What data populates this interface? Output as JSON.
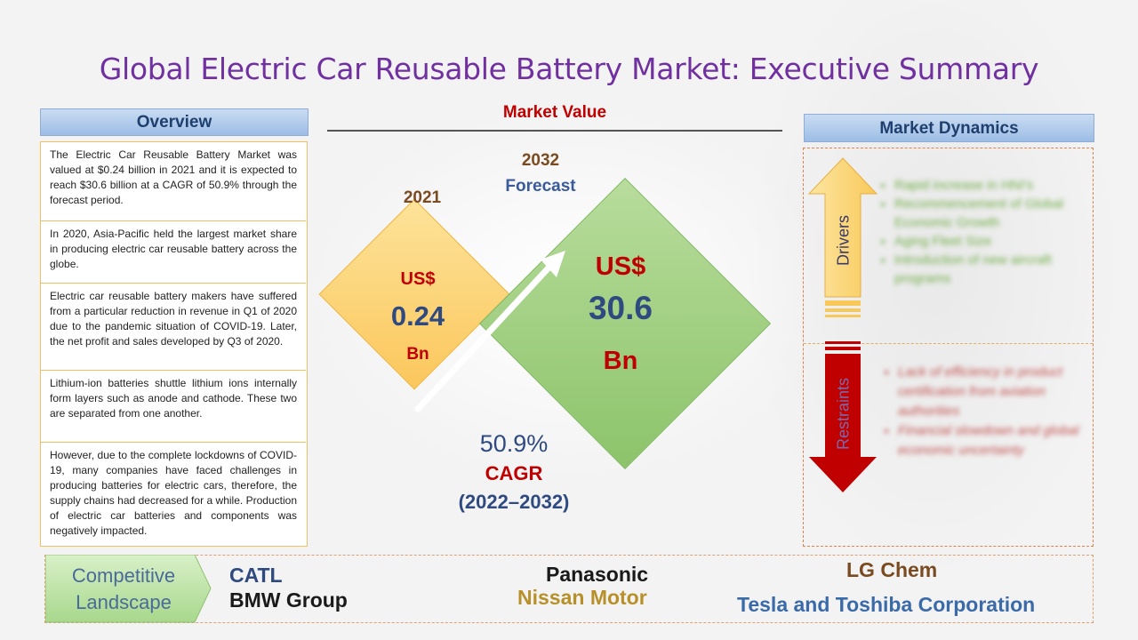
{
  "title": "Global Electric Car Reusable Battery Market: Executive Summary",
  "overview": {
    "header": "Overview",
    "items": [
      "The Electric Car Reusable Battery Market was valued at $0.24 billion in 2021 and it is expected to reach $30.6 billion at a CAGR of 50.9% through the forecast period.",
      "In 2020, Asia-Pacific held the largest market share in producing electric car reusable battery across the globe.",
      "Electric car reusable battery makers have suffered from a particular reduction in revenue in Q1 of 2020 due to the pandemic situation of COVID-19. Later, the net profit and sales developed by Q3 of 2020.",
      "Lithium-ion batteries shuttle lithium ions internally form layers such as anode and cathode. These two are separated from one another.",
      "However, due to the complete lockdowns of COVID-19, many companies have faced challenges in producing batteries for electric cars, therefore, the supply chains had decreased for a while. Production of electric car batteries and components was negatively impacted."
    ]
  },
  "market_value": {
    "title": "Market Value",
    "y2021": {
      "year": "2021",
      "currency": "US$",
      "value": "0.24",
      "unit": "Bn"
    },
    "y2032": {
      "year": "2032",
      "forecast": "Forecast",
      "currency": "US$",
      "value": "30.6",
      "unit": "Bn"
    },
    "cagr_value": "50.9%",
    "cagr_label": "CAGR",
    "cagr_period": "(2022–2032)"
  },
  "market_dynamics": {
    "header": "Market Dynamics",
    "drivers_label": "Drivers",
    "restraints_label": "Restraints",
    "drivers": [
      "Rapid increase in HNI's",
      "Recommencement of Global Economic Growth",
      "Aging Fleet Size",
      "Introduction of new aircraft programs"
    ],
    "restraints": [
      "Lack of efficiency in product certification from aviation authorities",
      "Financial slowdown and global economic uncertainty"
    ]
  },
  "competitive_landscape": {
    "label_line1": "Competitive",
    "label_line2": "Landscape",
    "companies": [
      {
        "name": "CATL",
        "color": "#2e4a80"
      },
      {
        "name": "BMW Group",
        "color": "#1a1a1a"
      },
      {
        "name": "Panasonic",
        "color": "#1a1a1a"
      },
      {
        "name": "Nissan Motor",
        "color": "#b8902a"
      },
      {
        "name": "LG Chem",
        "color": "#7a4a20"
      },
      {
        "name": "Tesla and Toshiba Corporation",
        "color": "#3a6aa8"
      }
    ]
  },
  "colors": {
    "title": "#7030a0",
    "market_value_title": "#c00000",
    "driver_arrow": "#fbd26a",
    "restraint_arrow": "#c00000",
    "driver_text": "#70ad47",
    "restraint_text": "#c0504d"
  },
  "icons": [
    "up-arrow-icon",
    "down-arrow-icon",
    "growth-arrow-icon",
    "chevron-tag-icon"
  ]
}
